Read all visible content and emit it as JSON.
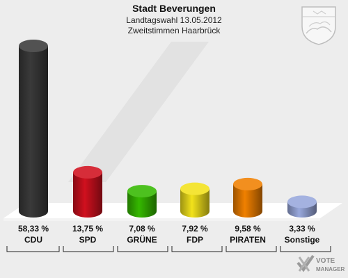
{
  "header": {
    "title": "Stadt Beverungen",
    "subtitle1": "Landtagswahl 13.05.2012",
    "subtitle2": "Zweitstimmen Haarbrück"
  },
  "watermark": {
    "line1": "VOTE",
    "line2": "MANAGER"
  },
  "chart_data": {
    "type": "bar",
    "title": "Stadt Beverungen",
    "categories": [
      "CDU",
      "SPD",
      "GRÜNE",
      "FDP",
      "PIRATEN",
      "Sonstige"
    ],
    "values": [
      58.33,
      13.75,
      7.08,
      7.92,
      9.58,
      3.33
    ],
    "value_labels": [
      "58,33 %",
      "13,75 %",
      "7,08 %",
      "7,92 %",
      "9,58 %",
      "3,33 %"
    ],
    "colors": [
      "#3a3a3a",
      "#d0101e",
      "#35b800",
      "#f2e21b",
      "#f08000",
      "#98a8dc"
    ],
    "bar_style": "3d-cylinder",
    "ylim": [
      0,
      60
    ],
    "grid": false,
    "legend": "none"
  }
}
